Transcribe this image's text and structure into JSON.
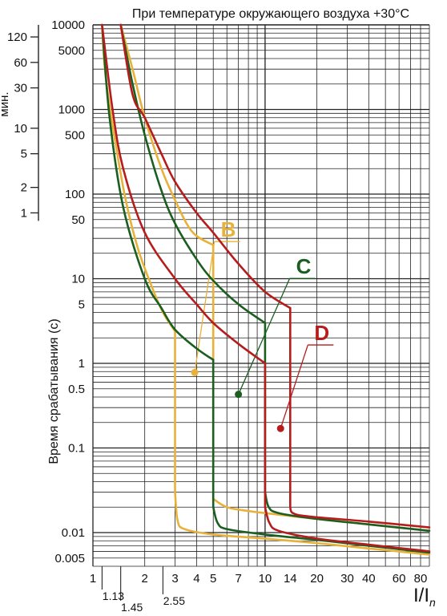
{
  "chart_data": {
    "type": "line",
    "title": "При температуре окружающего воздуха +30°С",
    "ylabel": "Время срабатывания (с)",
    "xlabel_main": "I/I",
    "xlabel_sub": "n",
    "minutes_label": "мин.",
    "x_scale": "log",
    "y_scale": "log",
    "xlim": [
      1,
      90
    ],
    "ylim": [
      0.004,
      10000
    ],
    "grid": true,
    "x_ticks": [
      {
        "v": 1,
        "label": "1"
      },
      {
        "v": 2,
        "label": "2"
      },
      {
        "v": 3,
        "label": "3"
      },
      {
        "v": 4,
        "label": "4"
      },
      {
        "v": 5,
        "label": "5"
      },
      {
        "v": 7,
        "label": "7"
      },
      {
        "v": 10,
        "label": "10"
      },
      {
        "v": 14,
        "label": "14"
      },
      {
        "v": 20,
        "label": "20"
      },
      {
        "v": 30,
        "label": "30"
      },
      {
        "v": 40,
        "label": "40"
      },
      {
        "v": 60,
        "label": "60"
      },
      {
        "v": 80,
        "label": "80"
      }
    ],
    "x_ticks_extra": [
      {
        "v": 1.13,
        "label": "1.13"
      },
      {
        "v": 1.45,
        "label": "1.45"
      },
      {
        "v": 2.55,
        "label": "2.55"
      }
    ],
    "y_ticks": [
      {
        "v": 10000,
        "label": "10000"
      },
      {
        "v": 5000,
        "label": "5000"
      },
      {
        "v": 1000,
        "label": "1000"
      },
      {
        "v": 500,
        "label": "500"
      },
      {
        "v": 100,
        "label": "100"
      },
      {
        "v": 50,
        "label": "50"
      },
      {
        "v": 10,
        "label": "10"
      },
      {
        "v": 5,
        "label": "5"
      },
      {
        "v": 1,
        "label": "1"
      },
      {
        "v": 0.5,
        "label": "0.5"
      },
      {
        "v": 0.1,
        "label": "0.1"
      },
      {
        "v": 0.01,
        "label": "0.01"
      },
      {
        "v": 0.005,
        "label": "0.005"
      }
    ],
    "minutes_ticks": [
      {
        "v": 7200,
        "label": "120"
      },
      {
        "v": 3600,
        "label": "60"
      },
      {
        "v": 1800,
        "label": "30"
      },
      {
        "v": 600,
        "label": "10"
      },
      {
        "v": 300,
        "label": "5"
      },
      {
        "v": 120,
        "label": "2"
      },
      {
        "v": 60,
        "label": "1"
      }
    ],
    "series": [
      {
        "name": "B",
        "color": "#e8b23a",
        "label_pos": {
          "x": 5.3,
          "y": 30
        },
        "marker": {
          "x": 3.9,
          "y": 0.78
        },
        "upper": [
          [
            1.45,
            10000
          ],
          [
            1.7,
            3000
          ],
          [
            2.0,
            800
          ],
          [
            2.5,
            200
          ],
          [
            3.0,
            85
          ],
          [
            3.5,
            45
          ],
          [
            4.0,
            32
          ],
          [
            5.0,
            25
          ]
        ],
        "lower": [
          [
            1.13,
            10000
          ],
          [
            1.2,
            2000
          ],
          [
            1.5,
            120
          ],
          [
            1.8,
            25
          ],
          [
            2.2,
            8
          ],
          [
            2.55,
            4.0
          ],
          [
            3.0,
            2.4
          ]
        ],
        "trip": [
          [
            3.0,
            2.4
          ],
          [
            3.0,
            0.03
          ],
          [
            3.1,
            0.014
          ],
          [
            3.4,
            0.011
          ],
          [
            5,
            0.0095
          ],
          [
            10,
            0.0085
          ],
          [
            20,
            0.0075
          ],
          [
            40,
            0.0065
          ],
          [
            90,
            0.0055
          ]
        ],
        "trip_upper": [
          [
            5.0,
            25
          ],
          [
            5.0,
            0.025
          ],
          [
            6,
            0.02
          ],
          [
            8,
            0.018
          ],
          [
            10,
            0.017
          ],
          [
            20,
            0.0145
          ],
          [
            40,
            0.0125
          ],
          [
            90,
            0.0105
          ]
        ]
      },
      {
        "name": "C",
        "color": "#1b5e20",
        "label_pos": {
          "x": 14.5,
          "y": 11
        },
        "marker": {
          "x": 7.0,
          "y": 0.43
        },
        "upper": [
          [
            1.45,
            10000
          ],
          [
            1.7,
            2000
          ],
          [
            2.0,
            500
          ],
          [
            2.5,
            110
          ],
          [
            3.0,
            45
          ],
          [
            4.0,
            17
          ],
          [
            5.0,
            9.5
          ],
          [
            7.0,
            5.0
          ],
          [
            10.0,
            3.0
          ]
        ],
        "lower": [
          [
            1.13,
            10000
          ],
          [
            1.25,
            800
          ],
          [
            1.5,
            70
          ],
          [
            2.0,
            10
          ],
          [
            2.5,
            4.5
          ],
          [
            3.0,
            2.5
          ],
          [
            4.0,
            1.5
          ],
          [
            5.0,
            1.1
          ]
        ],
        "trip": [
          [
            5.0,
            1.1
          ],
          [
            5.0,
            0.02
          ],
          [
            5.3,
            0.013
          ],
          [
            6,
            0.011
          ],
          [
            10,
            0.0095
          ],
          [
            20,
            0.0082
          ],
          [
            40,
            0.007
          ],
          [
            90,
            0.0058
          ]
        ],
        "trip_upper": [
          [
            10.0,
            3.0
          ],
          [
            10.0,
            0.03
          ],
          [
            10.5,
            0.02
          ],
          [
            12,
            0.017
          ],
          [
            20,
            0.0145
          ],
          [
            40,
            0.0125
          ],
          [
            90,
            0.0105
          ]
        ]
      },
      {
        "name": "D",
        "color": "#b71c1c",
        "label_pos": {
          "x": 18.5,
          "y": 1.8
        },
        "marker": {
          "x": 12.3,
          "y": 0.17
        },
        "upper": [
          [
            1.45,
            10000
          ],
          [
            1.7,
            1500
          ],
          [
            2.0,
            800
          ],
          [
            2.5,
            300
          ],
          [
            3.0,
            140
          ],
          [
            4.0,
            60
          ],
          [
            5.0,
            35
          ],
          [
            7.0,
            15
          ],
          [
            10.0,
            7.0
          ],
          [
            14.0,
            4.5
          ]
        ],
        "lower": [
          [
            1.13,
            10000
          ],
          [
            1.3,
            1000
          ],
          [
            1.5,
            200
          ],
          [
            2.0,
            35
          ],
          [
            3.0,
            10
          ],
          [
            4.0,
            5.0
          ],
          [
            5.0,
            3.0
          ],
          [
            7.0,
            1.7
          ],
          [
            10.0,
            1.0
          ]
        ],
        "trip": [
          [
            10.0,
            1.0
          ],
          [
            10.0,
            0.02
          ],
          [
            10.6,
            0.013
          ],
          [
            12,
            0.0105
          ],
          [
            20,
            0.0085
          ],
          [
            40,
            0.0072
          ],
          [
            90,
            0.006
          ]
        ],
        "trip_upper": [
          [
            14.0,
            4.5
          ],
          [
            14.0,
            0.02
          ],
          [
            14.5,
            0.017
          ],
          [
            18,
            0.0155
          ],
          [
            40,
            0.0135
          ],
          [
            90,
            0.0115
          ]
        ]
      }
    ]
  }
}
